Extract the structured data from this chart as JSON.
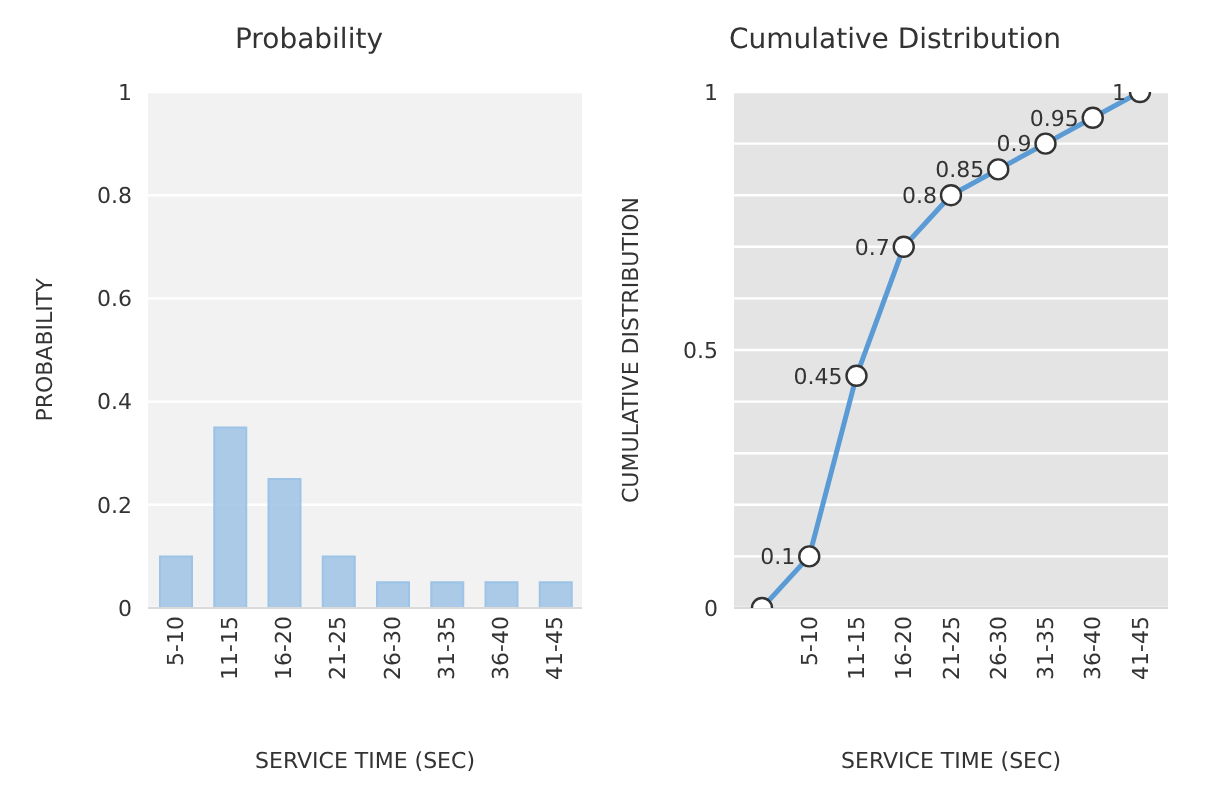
{
  "chart_data": [
    {
      "type": "bar",
      "title": "Probability",
      "xlabel": "SERVICE TIME (SEC)",
      "ylabel": "PROBABILITY",
      "categories": [
        "5-10",
        "11-15",
        "16-20",
        "21-25",
        "26-30",
        "31-35",
        "36-40",
        "41-45"
      ],
      "series": [
        {
          "color": "#9dc3e6",
          "values": [
            0.1,
            0.35,
            0.25,
            0.1,
            0.05,
            0.05,
            0.05,
            0.05
          ]
        }
      ],
      "ylim": [
        0,
        1
      ],
      "yticks": [
        0,
        0.2,
        0.4,
        0.6,
        0.8,
        1
      ],
      "grid": "y"
    },
    {
      "type": "line",
      "title": "Cumulative Distribution",
      "xlabel": "SERVICE TIME (SEC)",
      "ylabel": "CUMULATIVE DISTRIBUTION",
      "categories": [
        null,
        "5-10",
        "11-15",
        "16-20",
        "21-25",
        "26-30",
        "31-35",
        "36-40",
        "41-45"
      ],
      "series": [
        {
          "color": "#5b9bd5",
          "values": [
            0,
            0.1,
            0.45,
            0.7,
            0.8,
            0.85,
            0.9,
            0.95,
            1
          ],
          "value_labels": [
            null,
            "0.1",
            "0.45",
            "0.7",
            "0.8",
            "0.85",
            "0.9",
            "0.95",
            "1"
          ]
        }
      ],
      "ylim": [
        0,
        1
      ],
      "yticks": [
        0,
        {
          "value": 0.1,
          "label": null
        },
        {
          "value": 0.2,
          "label": null
        },
        {
          "value": 0.3,
          "label": null
        },
        {
          "value": 0.4,
          "label": null
        },
        0.5,
        {
          "value": 0.6,
          "label": null
        },
        {
          "value": 0.7,
          "label": null
        },
        {
          "value": 0.8,
          "label": null
        },
        {
          "value": 0.9,
          "label": null
        },
        1
      ],
      "grid": "y",
      "marker": "circle",
      "line_style": "solid"
    }
  ]
}
